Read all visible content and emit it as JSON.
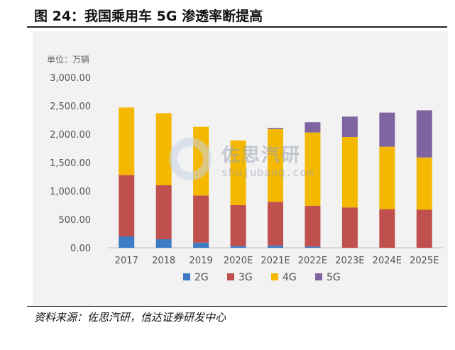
{
  "header": {
    "title": "图 24：我国乘用车 5G 渗透率断提高"
  },
  "footer": {
    "source": "资料来源：佐思汽研，信达证券研发中心"
  },
  "watermark": {
    "brand": "佐思汽研",
    "site": "shujubang.com"
  },
  "colors": {
    "2G": "#3d7bc4",
    "3G": "#c0504d",
    "4G": "#f5b800",
    "5G": "#8064a2",
    "panel": "#f2f2f2"
  },
  "chart_data": {
    "type": "bar",
    "stacked": true,
    "unit_label": "单位：万辆",
    "categories": [
      "2017",
      "2018",
      "2019",
      "2020E",
      "2021E",
      "2022E",
      "2023E",
      "2024E",
      "2025E"
    ],
    "series": [
      {
        "name": "2G",
        "values": [
          200,
          150,
          90,
          30,
          40,
          20,
          0,
          0,
          0
        ]
      },
      {
        "name": "3G",
        "values": [
          1080,
          950,
          830,
          720,
          770,
          720,
          710,
          680,
          670
        ]
      },
      {
        "name": "4G",
        "values": [
          1190,
          1270,
          1210,
          1140,
          1280,
          1290,
          1240,
          1100,
          920
        ]
      },
      {
        "name": "5G",
        "values": [
          0,
          0,
          0,
          0,
          20,
          180,
          360,
          600,
          830
        ]
      }
    ],
    "y_ticks": [
      "0.00",
      "500.00",
      "1,000.00",
      "1,500.00",
      "2,000.00",
      "2,500.00",
      "3,000.00"
    ],
    "ylim": [
      0,
      3000
    ],
    "grid": false,
    "legend_position": "bottom"
  }
}
